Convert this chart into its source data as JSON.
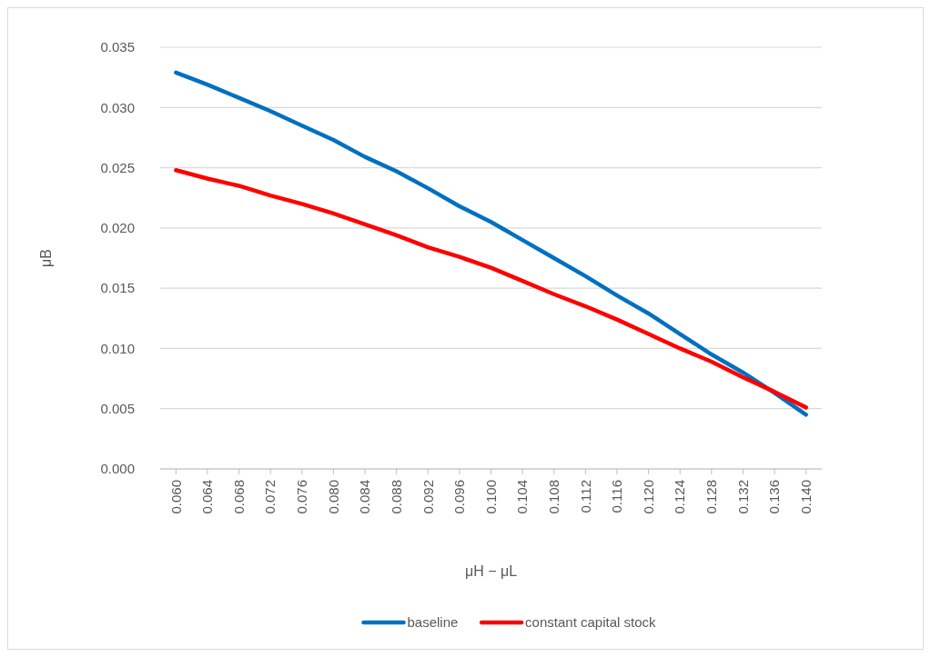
{
  "chart_data": {
    "type": "line",
    "xlabel": "μH − μL",
    "ylabel": "μB",
    "x": [
      0.06,
      0.064,
      0.068,
      0.072,
      0.076,
      0.08,
      0.084,
      0.088,
      0.092,
      0.096,
      0.1,
      0.104,
      0.108,
      0.112,
      0.116,
      0.12,
      0.124,
      0.128,
      0.132,
      0.136,
      0.14
    ],
    "series": [
      {
        "name": "baseline",
        "color": "#0070c0",
        "values": [
          0.0329,
          0.0319,
          0.0308,
          0.0297,
          0.0285,
          0.0273,
          0.0259,
          0.0247,
          0.0233,
          0.0218,
          0.0205,
          0.019,
          0.0175,
          0.016,
          0.0144,
          0.0129,
          0.0112,
          0.0095,
          0.008,
          0.0063,
          0.0045
        ]
      },
      {
        "name": "constant capital stock",
        "color": "#ff0000",
        "values": [
          0.0248,
          0.0241,
          0.0235,
          0.0227,
          0.022,
          0.0212,
          0.0203,
          0.0194,
          0.0184,
          0.0176,
          0.0167,
          0.0156,
          0.0145,
          0.0135,
          0.0124,
          0.0112,
          0.01,
          0.0089,
          0.0076,
          0.0064,
          0.0051
        ]
      }
    ],
    "xlim": [
      0.058,
      0.142
    ],
    "xticks": [
      {
        "value": 0.06,
        "label": "0.060"
      },
      {
        "value": 0.064,
        "label": "0.064"
      },
      {
        "value": 0.068,
        "label": "0.068"
      },
      {
        "value": 0.072,
        "label": "0.072"
      },
      {
        "value": 0.076,
        "label": "0.076"
      },
      {
        "value": 0.08,
        "label": "0.080"
      },
      {
        "value": 0.084,
        "label": "0.084"
      },
      {
        "value": 0.088,
        "label": "0.088"
      },
      {
        "value": 0.092,
        "label": "0.092"
      },
      {
        "value": 0.096,
        "label": "0.096"
      },
      {
        "value": 0.1,
        "label": "0.100"
      },
      {
        "value": 0.104,
        "label": "0.104"
      },
      {
        "value": 0.108,
        "label": "0.108"
      },
      {
        "value": 0.112,
        "label": "0.112"
      },
      {
        "value": 0.116,
        "label": "0.116"
      },
      {
        "value": 0.12,
        "label": "0.120"
      },
      {
        "value": 0.124,
        "label": "0.124"
      },
      {
        "value": 0.128,
        "label": "0.128"
      },
      {
        "value": 0.132,
        "label": "0.132"
      },
      {
        "value": 0.136,
        "label": "0.136"
      },
      {
        "value": 0.14,
        "label": "0.140"
      }
    ],
    "ylim": [
      0,
      0.035
    ],
    "yticks": [
      {
        "value": 0,
        "label": "0.000"
      },
      {
        "value": 0.005,
        "label": "0.005"
      },
      {
        "value": 0.01,
        "label": "0.010"
      },
      {
        "value": 0.015,
        "label": "0.015"
      },
      {
        "value": 0.02,
        "label": "0.020"
      },
      {
        "value": 0.025,
        "label": "0.025"
      },
      {
        "value": 0.03,
        "label": "0.030"
      },
      {
        "value": 0.035,
        "label": "0.035"
      }
    ],
    "grid": "y",
    "legend": "bottom",
    "line_style": "solid",
    "marker": "none"
  }
}
